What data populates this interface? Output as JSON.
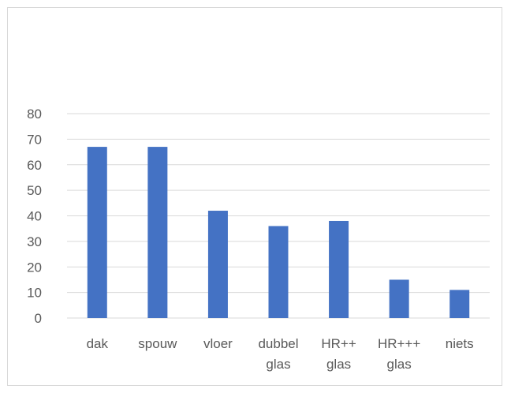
{
  "chart_data": {
    "type": "bar",
    "title": "",
    "xlabel": "",
    "ylabel": "",
    "categories": [
      [
        "dak"
      ],
      [
        "spouw"
      ],
      [
        "vloer"
      ],
      [
        "dubbel",
        "glas"
      ],
      [
        "HR++",
        "glas"
      ],
      [
        "HR+++",
        "glas"
      ],
      [
        "niets"
      ]
    ],
    "values": [
      67,
      67,
      42,
      36,
      38,
      15,
      11
    ],
    "ylim": [
      0,
      80
    ],
    "yticks": [
      "0",
      "10",
      "20",
      "30",
      "40",
      "50",
      "60",
      "70",
      "80"
    ],
    "grid": true,
    "legend": "none",
    "colors": {
      "bar": "#4472c4",
      "grid": "#d9d9d9",
      "axis": "#d9d9d9",
      "text": "#595959"
    }
  }
}
